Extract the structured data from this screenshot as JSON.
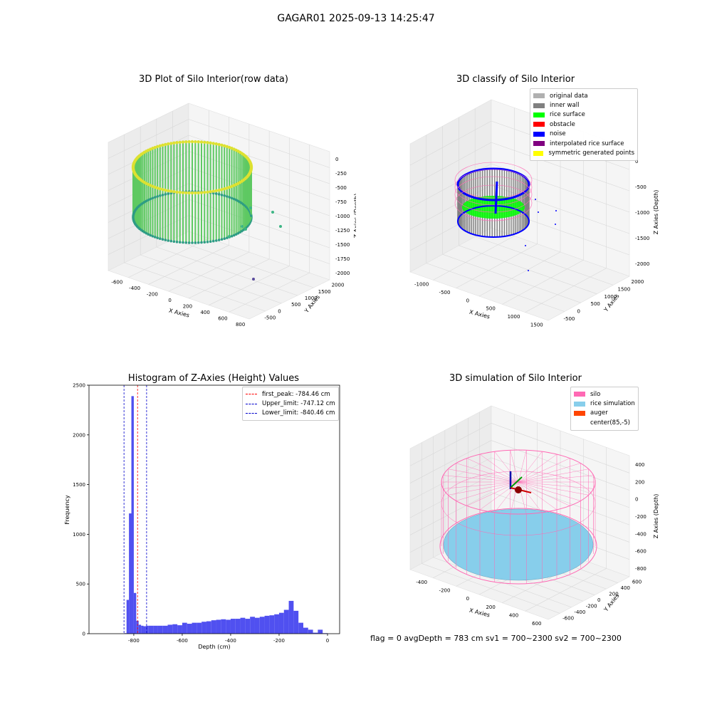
{
  "suptitle": "GAGAR01 2025-09-13 14:25:47",
  "footer": "flag = 0     avgDepth = 783 cm  sv1 = 700~2300  sv2 = 700~2300",
  "panels": {
    "raw": {
      "title": "3D Plot of Silo Interior(row data)",
      "xlabel": "X Axies",
      "ylabel": "Y Axies",
      "zlabel": "Z Axies (Depth)",
      "xticks": [
        "-600",
        "-400",
        "-200",
        "0",
        "200",
        "400",
        "600",
        "800"
      ],
      "yticks": [
        "-500",
        "0",
        "500",
        "1000",
        "1500",
        "2000"
      ],
      "zticks": [
        "0",
        "-250",
        "-500",
        "-750",
        "-1000",
        "-1250",
        "-1500",
        "-1750",
        "-2000"
      ]
    },
    "classify": {
      "title": "3D classify of Silo Interior",
      "xlabel": "X Axies",
      "ylabel": "Y Axies",
      "zlabel": "Z Axies (Depth)",
      "xticks": [
        "-1000",
        "-500",
        "0",
        "500",
        "1000",
        "1500"
      ],
      "yticks": [
        "-500",
        "0",
        "500",
        "1000",
        "1500",
        "2000"
      ],
      "zticks": [
        "0",
        "-500",
        "-1000",
        "-1500",
        "-2000"
      ],
      "z_extra_tick": "00",
      "legend": [
        {
          "label": "original data",
          "color": "#b0b0b0"
        },
        {
          "label": "inner wall",
          "color": "#808080"
        },
        {
          "label": "rice surface",
          "color": "#00ff00"
        },
        {
          "label": "obstacle",
          "color": "#ff0000"
        },
        {
          "label": "noise",
          "color": "#0000ff"
        },
        {
          "label": "interpolated rice surface",
          "color": "#800080"
        },
        {
          "label": "symmetric generated points",
          "color": "#ffff00"
        }
      ]
    },
    "simulation": {
      "title": "3D simulation of Silo Interior",
      "xlabel": "X Axies",
      "ylabel": "Y Axies",
      "zlabel": "Z Axies (Depth)",
      "xticks": [
        "-400",
        "-200",
        "0",
        "200",
        "400",
        "600"
      ],
      "yticks": [
        "-600",
        "-400",
        "-200",
        "0",
        "200",
        "400",
        "600"
      ],
      "zticks": [
        "400",
        "200",
        "0",
        "-200",
        "-400",
        "-600",
        "-800"
      ],
      "legend": [
        {
          "label": "silo",
          "color": "#ff69b4"
        },
        {
          "label": "rice simulation",
          "color": "#87ceeb"
        },
        {
          "label": "auger",
          "color": "#ff4500"
        },
        {
          "label": "center(85,-5)",
          "color": "#ffffff"
        }
      ]
    }
  },
  "chart_data": {
    "type": "bar",
    "title": "Histogram of Z-Axies (Height) Values",
    "xlabel": "Depth (cm)",
    "ylabel": "Frequency",
    "xlim": [
      -985,
      50
    ],
    "ylim": [
      0,
      2500
    ],
    "xticks": [
      -800,
      -600,
      -400,
      -200,
      0
    ],
    "yticks": [
      0,
      500,
      1000,
      1500,
      2000,
      2500
    ],
    "bar_color": "#5050f0",
    "bin_edges": [
      -840,
      -830,
      -820,
      -810,
      -800,
      -790,
      -780,
      -770,
      -760,
      -750,
      -740,
      -720,
      -700,
      -680,
      -660,
      -640,
      -620,
      -600,
      -580,
      -560,
      -540,
      -520,
      -500,
      -480,
      -460,
      -440,
      -420,
      -400,
      -380,
      -360,
      -340,
      -320,
      -300,
      -280,
      -260,
      -240,
      -220,
      -200,
      -180,
      -160,
      -140,
      -120,
      -100,
      -80,
      -60,
      -40,
      -20,
      0
    ],
    "counts": [
      5,
      340,
      1210,
      2390,
      410,
      130,
      90,
      80,
      75,
      80,
      80,
      80,
      80,
      80,
      90,
      95,
      85,
      110,
      100,
      110,
      110,
      120,
      125,
      135,
      140,
      145,
      140,
      150,
      150,
      160,
      150,
      170,
      160,
      170,
      180,
      185,
      195,
      210,
      240,
      330,
      230,
      110,
      60,
      40,
      10,
      40,
      5
    ],
    "vlines": [
      {
        "x": -784.46,
        "color": "#ff0000",
        "label": "first_peak: -784.46 cm"
      },
      {
        "x": -747.12,
        "color": "#0000cc",
        "label": "Upper_limit: -747.12 cm"
      },
      {
        "x": -840.46,
        "color": "#0000cc",
        "label": "Lower_limit: -840.46 cm"
      }
    ]
  }
}
